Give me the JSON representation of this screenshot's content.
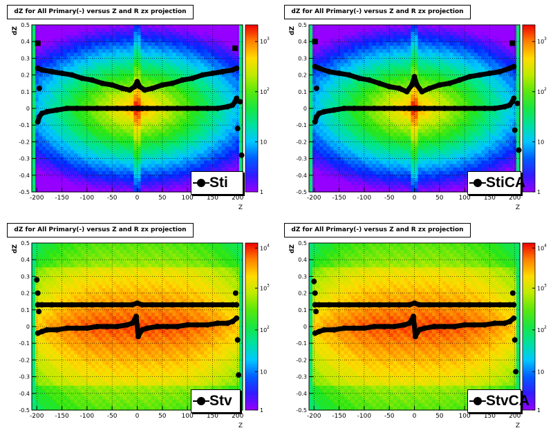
{
  "panels": [
    {
      "title": "dZ for All Primary(-) versus Z and R zx projection",
      "legend": "Sti"
    },
    {
      "title": "dZ for All Primary(-) versus Z and R zx projection",
      "legend": "StiCA"
    },
    {
      "title": "dZ for All Primary(-) versus Z and R zx projection",
      "legend": "Stv"
    },
    {
      "title": "dZ for All Primary(-) versus Z and R zx projection",
      "legend": "StvCA"
    }
  ],
  "footer": "",
  "colors": {
    "marker": "#000000",
    "grid": "#000000",
    "frame": "#000000"
  },
  "chart_data": [
    {
      "type": "heatmap",
      "title": "dZ for All Primary(-) versus Z and R zx projection",
      "xlabel": "Z",
      "ylabel": "dZ",
      "xlim": [
        -210,
        210
      ],
      "ylim": [
        -0.5,
        0.5
      ],
      "xticks": [
        -200,
        -150,
        -100,
        -50,
        0,
        50,
        100,
        150,
        200
      ],
      "yticks": [
        -0.5,
        -0.4,
        -0.3,
        -0.2,
        -0.1,
        0,
        0.1,
        0.2,
        0.3,
        0.4,
        0.5
      ],
      "colorbar": {
        "scale": "log",
        "ticks": [
          "1",
          "10",
          "10^2",
          "10^3"
        ]
      },
      "grid": true,
      "legend": "Sti",
      "legend_placement": "bottom-right",
      "series": [
        {
          "x": [
            -198,
            -190,
            -170,
            -150,
            -130,
            -110,
            -90,
            -70,
            -50,
            -30,
            -15,
            -5,
            0,
            5,
            15,
            30,
            50,
            70,
            90,
            110,
            130,
            150,
            170,
            190,
            198
          ],
          "y": [
            0.24,
            0.23,
            0.22,
            0.21,
            0.2,
            0.18,
            0.17,
            0.15,
            0.14,
            0.12,
            0.11,
            0.13,
            0.16,
            0.13,
            0.11,
            0.12,
            0.14,
            0.15,
            0.17,
            0.18,
            0.2,
            0.21,
            0.22,
            0.23,
            0.24
          ]
        },
        {
          "x": [
            -198,
            -195,
            -190,
            -180,
            -160,
            -140,
            -120,
            -100,
            -80,
            -60,
            -40,
            -20,
            -10,
            0,
            10,
            20,
            40,
            60,
            80,
            100,
            120,
            140,
            160,
            180,
            190,
            195,
            198
          ],
          "y": [
            -0.08,
            -0.05,
            -0.03,
            -0.02,
            -0.01,
            0,
            0,
            0,
            0,
            0,
            0,
            0,
            0,
            0,
            0,
            0,
            0,
            0,
            0,
            0,
            0,
            0,
            0,
            0.01,
            0.02,
            0.04,
            0.06
          ]
        },
        {
          "x": [
            -198,
            -195,
            195,
            200,
            205,
            208
          ],
          "y": [
            0.39,
            0.12,
            0.36,
            -0.12,
            0.04,
            -0.28
          ]
        }
      ]
    },
    {
      "type": "heatmap",
      "title": "dZ for All Primary(-) versus Z and R zx projection",
      "xlabel": "Z",
      "ylabel": "dZ",
      "xlim": [
        -210,
        210
      ],
      "ylim": [
        -0.5,
        0.5
      ],
      "xticks": [
        -200,
        -150,
        -100,
        -50,
        0,
        50,
        100,
        150,
        200
      ],
      "yticks": [
        -0.5,
        -0.4,
        -0.3,
        -0.2,
        -0.1,
        0,
        0.1,
        0.2,
        0.3,
        0.4,
        0.5
      ],
      "colorbar": {
        "scale": "log",
        "ticks": [
          "1",
          "10",
          "10^2",
          "10^3"
        ]
      },
      "grid": true,
      "legend": "StiCA",
      "legend_placement": "bottom-right",
      "series": [
        {
          "x": [
            -198,
            -190,
            -170,
            -150,
            -130,
            -110,
            -90,
            -70,
            -50,
            -30,
            -15,
            -5,
            0,
            5,
            15,
            30,
            50,
            70,
            90,
            110,
            130,
            150,
            170,
            190,
            198
          ],
          "y": [
            0.25,
            0.24,
            0.22,
            0.21,
            0.2,
            0.18,
            0.17,
            0.15,
            0.13,
            0.12,
            0.1,
            0.14,
            0.19,
            0.14,
            0.1,
            0.12,
            0.14,
            0.15,
            0.17,
            0.19,
            0.2,
            0.21,
            0.22,
            0.24,
            0.25
          ]
        },
        {
          "x": [
            -198,
            -195,
            -190,
            -180,
            -160,
            -140,
            -120,
            -100,
            -80,
            -60,
            -40,
            -20,
            -10,
            0,
            10,
            20,
            40,
            60,
            80,
            100,
            120,
            140,
            160,
            180,
            190,
            195,
            198
          ],
          "y": [
            -0.08,
            -0.05,
            -0.03,
            -0.02,
            -0.01,
            0,
            0,
            0,
            0,
            0,
            0,
            0,
            0,
            0,
            0,
            0,
            0,
            0,
            0,
            0,
            0,
            0,
            0,
            0.01,
            0.02,
            0.04,
            0.06
          ]
        },
        {
          "x": [
            -198,
            -195,
            195,
            200,
            205,
            208
          ],
          "y": [
            0.4,
            0.12,
            0.39,
            -0.13,
            0.03,
            -0.25
          ]
        }
      ]
    },
    {
      "type": "heatmap",
      "title": "dZ for All Primary(-) versus Z and R zx projection",
      "xlabel": "Z",
      "ylabel": "dZ",
      "xlim": [
        -210,
        210
      ],
      "ylim": [
        -0.5,
        0.5
      ],
      "xticks": [
        -200,
        -150,
        -100,
        -50,
        0,
        50,
        100,
        150,
        200
      ],
      "yticks": [
        -0.5,
        -0.4,
        -0.3,
        -0.2,
        -0.1,
        0,
        0.1,
        0.2,
        0.3,
        0.4,
        0.5
      ],
      "colorbar": {
        "scale": "log",
        "ticks": [
          "1",
          "10",
          "10^2",
          "10^3",
          "10^4"
        ]
      },
      "grid": true,
      "legend": "Stv",
      "legend_placement": "bottom-right",
      "series": [
        {
          "x": [
            -198,
            -190,
            -170,
            -150,
            -130,
            -110,
            -90,
            -70,
            -50,
            -30,
            -10,
            0,
            10,
            30,
            50,
            70,
            90,
            110,
            130,
            150,
            170,
            190,
            198
          ],
          "y": [
            0.13,
            0.13,
            0.13,
            0.13,
            0.13,
            0.13,
            0.13,
            0.13,
            0.13,
            0.13,
            0.13,
            0.14,
            0.13,
            0.13,
            0.13,
            0.13,
            0.13,
            0.13,
            0.13,
            0.13,
            0.13,
            0.13,
            0.13
          ]
        },
        {
          "x": [
            -198,
            -190,
            -180,
            -160,
            -140,
            -120,
            -100,
            -80,
            -60,
            -40,
            -20,
            -10,
            -5,
            -2,
            2,
            5,
            10,
            20,
            40,
            60,
            80,
            100,
            120,
            140,
            160,
            180,
            190,
            198
          ],
          "y": [
            -0.04,
            -0.03,
            -0.02,
            -0.02,
            -0.01,
            -0.01,
            -0.01,
            0,
            0,
            0,
            0.01,
            0.02,
            0.04,
            0.06,
            -0.06,
            -0.04,
            -0.02,
            -0.01,
            0,
            0,
            0,
            0.01,
            0.01,
            0.01,
            0.02,
            0.02,
            0.03,
            0.05
          ]
        },
        {
          "x": [
            -200,
            -198,
            -196,
            196,
            200,
            202
          ],
          "y": [
            0.28,
            0.2,
            0.09,
            0.2,
            -0.08,
            -0.29
          ]
        }
      ]
    },
    {
      "type": "heatmap",
      "title": "dZ for All Primary(-) versus Z and R zx projection",
      "xlabel": "Z",
      "ylabel": "dZ",
      "xlim": [
        -210,
        210
      ],
      "ylim": [
        -0.5,
        0.5
      ],
      "xticks": [
        -200,
        -150,
        -100,
        -50,
        0,
        50,
        100,
        150,
        200
      ],
      "yticks": [
        -0.5,
        -0.4,
        -0.3,
        -0.2,
        -0.1,
        0,
        0.1,
        0.2,
        0.3,
        0.4,
        0.5
      ],
      "colorbar": {
        "scale": "log",
        "ticks": [
          "1",
          "10",
          "10^2",
          "10^3",
          "10^4"
        ]
      },
      "grid": true,
      "legend": "StvCA",
      "legend_placement": "bottom-right",
      "series": [
        {
          "x": [
            -198,
            -190,
            -170,
            -150,
            -130,
            -110,
            -90,
            -70,
            -50,
            -30,
            -10,
            0,
            10,
            30,
            50,
            70,
            90,
            110,
            130,
            150,
            170,
            190,
            198
          ],
          "y": [
            0.13,
            0.13,
            0.13,
            0.13,
            0.13,
            0.13,
            0.13,
            0.13,
            0.13,
            0.13,
            0.13,
            0.14,
            0.13,
            0.13,
            0.13,
            0.13,
            0.13,
            0.13,
            0.13,
            0.13,
            0.13,
            0.13,
            0.13
          ]
        },
        {
          "x": [
            -198,
            -190,
            -180,
            -160,
            -140,
            -120,
            -100,
            -80,
            -60,
            -40,
            -20,
            -10,
            -5,
            -2,
            2,
            5,
            10,
            20,
            40,
            60,
            80,
            100,
            120,
            140,
            160,
            180,
            190,
            198
          ],
          "y": [
            -0.04,
            -0.03,
            -0.02,
            -0.02,
            -0.01,
            -0.01,
            -0.01,
            0,
            0,
            0,
            0.01,
            0.02,
            0.04,
            0.06,
            -0.06,
            -0.04,
            -0.02,
            -0.01,
            0,
            0,
            0,
            0.01,
            0.01,
            0.01,
            0.02,
            0.02,
            0.03,
            0.05
          ]
        },
        {
          "x": [
            -200,
            -198,
            -196,
            196,
            200,
            202
          ],
          "y": [
            0.27,
            0.2,
            0.09,
            0.2,
            -0.08,
            -0.27
          ]
        }
      ]
    }
  ]
}
